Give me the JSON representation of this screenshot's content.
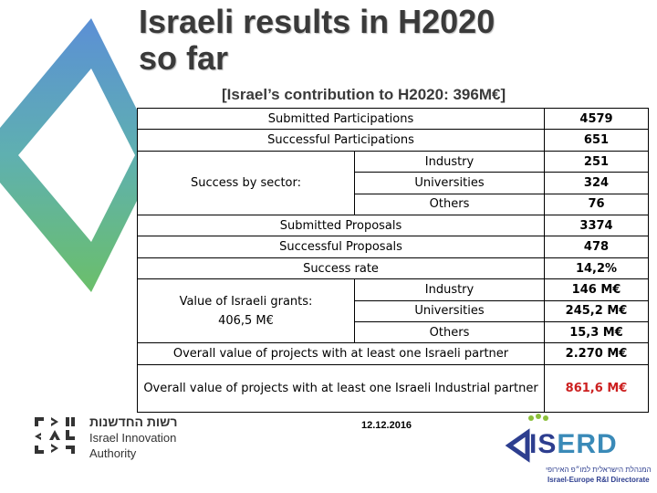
{
  "slide": {
    "title_line1": "Israeli results in H2020",
    "title_line2": "so far",
    "subtitle": "[Israel’s contribution to H2020: 396M€]",
    "date": "12.12.2016"
  },
  "table": {
    "submitted_participations": {
      "label": "Submitted Participations",
      "value": "4579"
    },
    "successful_participations": {
      "label": "Successful Participations",
      "value": "651"
    },
    "success_by_sector": {
      "label": "Success by sector:",
      "rows": [
        {
          "sector": "Industry",
          "value": "251"
        },
        {
          "sector": "Universities",
          "value": "324"
        },
        {
          "sector": "Others",
          "value": "76"
        }
      ]
    },
    "submitted_proposals": {
      "label": "Submitted Proposals",
      "value": "3374"
    },
    "successful_proposals": {
      "label": "Successful Proposals",
      "value": "478"
    },
    "success_rate": {
      "label": "Success rate",
      "value": "14,2%"
    },
    "grants": {
      "label_line1": "Value of Israeli grants:",
      "label_line2": "406,5 M€",
      "rows": [
        {
          "sector": "Industry",
          "value": "146 M€"
        },
        {
          "sector": "Universities",
          "value": "245,2 M€"
        },
        {
          "sector": "Others",
          "value": "15,3 M€"
        }
      ]
    },
    "overall_partner": {
      "label": "Overall value of projects with at least one Israeli partner",
      "value": "2.270 M€"
    },
    "overall_industrial": {
      "label": "Overall value of projects with at least one Israeli Industrial partner",
      "value": "861,6 M€"
    }
  },
  "logos": {
    "iia": {
      "hebrew": "רשות החדשנות",
      "line1": "Israel Innovation",
      "line2": "Authority"
    },
    "iserd": {
      "word_part1": "IS",
      "word_part2": "ERD",
      "hebrew": "המנהלת הישראלית למו״פ האירופי",
      "english": "Israel-Europe R&I Directorate"
    }
  },
  "colors": {
    "accent_red": "#cc1f1f",
    "diamond_blue": "#5b8fd6",
    "diamond_green": "#6bbf6a",
    "iserd_blue": "#2d3e8f"
  }
}
